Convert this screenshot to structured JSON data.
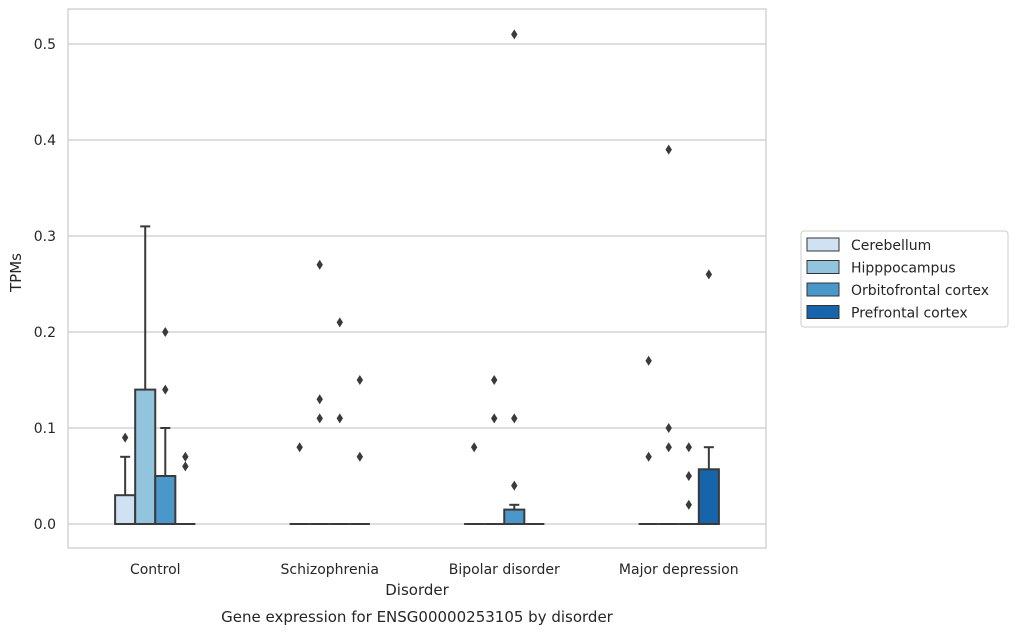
{
  "chart_data": {
    "type": "box",
    "title": "",
    "caption": "Gene expression for ENSG00000253105 by disorder",
    "xlabel": "Disorder",
    "ylabel": "TPMs",
    "ylim": [
      -0.025,
      0.54
    ],
    "yticks": [
      "0.0",
      "0.1",
      "0.2",
      "0.3",
      "0.4",
      "0.5"
    ],
    "grid": true,
    "legend_position": "right",
    "categories": [
      "Control",
      "Schizophrenia",
      "Bipolar disorder",
      "Major depression"
    ],
    "series": [
      {
        "name": "Cerebellum",
        "color": "#cfe1f2",
        "boxes": [
          {
            "q1": 0,
            "median": 0,
            "q3": 0.03,
            "whisker_low": 0,
            "whisker_high": 0.07,
            "outliers": [
              0.09
            ]
          },
          {
            "q1": 0,
            "median": 0,
            "q3": 0,
            "whisker_low": 0,
            "whisker_high": 0,
            "outliers": [
              0.08
            ]
          },
          {
            "q1": 0,
            "median": 0,
            "q3": 0,
            "whisker_low": 0,
            "whisker_high": 0,
            "outliers": [
              0.08
            ]
          },
          {
            "q1": 0,
            "median": 0,
            "q3": 0,
            "whisker_low": 0,
            "whisker_high": 0,
            "outliers": [
              0.17,
              0.07
            ]
          }
        ]
      },
      {
        "name": "Hipppocampus",
        "color": "#93c4de",
        "boxes": [
          {
            "q1": 0,
            "median": 0,
            "q3": 0.14,
            "whisker_low": 0,
            "whisker_high": 0.31,
            "outliers": []
          },
          {
            "q1": 0,
            "median": 0,
            "q3": 0,
            "whisker_low": 0,
            "whisker_high": 0,
            "outliers": [
              0.27,
              0.13,
              0.11
            ]
          },
          {
            "q1": 0,
            "median": 0,
            "q3": 0,
            "whisker_low": 0,
            "whisker_high": 0,
            "outliers": [
              0.15,
              0.11
            ]
          },
          {
            "q1": 0,
            "median": 0,
            "q3": 0,
            "whisker_low": 0,
            "whisker_high": 0,
            "outliers": [
              0.39,
              0.1,
              0.08
            ]
          }
        ]
      },
      {
        "name": "Orbitofrontal cortex",
        "color": "#4a98c9",
        "boxes": [
          {
            "q1": 0,
            "median": 0,
            "q3": 0.05,
            "whisker_low": 0,
            "whisker_high": 0.1,
            "outliers": [
              0.2,
              0.14
            ]
          },
          {
            "q1": 0,
            "median": 0,
            "q3": 0,
            "whisker_low": 0,
            "whisker_high": 0,
            "outliers": [
              0.21,
              0.11
            ]
          },
          {
            "q1": 0,
            "median": 0,
            "q3": 0.015,
            "whisker_low": 0,
            "whisker_high": 0.02,
            "outliers": [
              0.51,
              0.11,
              0.04
            ]
          },
          {
            "q1": 0,
            "median": 0,
            "q3": 0,
            "whisker_low": 0,
            "whisker_high": 0,
            "outliers": [
              0.08,
              0.05,
              0.02
            ]
          }
        ]
      },
      {
        "name": "Prefrontal cortex",
        "color": "#1764ab",
        "boxes": [
          {
            "q1": 0,
            "median": 0,
            "q3": 0,
            "whisker_low": 0,
            "whisker_high": 0,
            "outliers": [
              0.07,
              0.06
            ]
          },
          {
            "q1": 0,
            "median": 0,
            "q3": 0,
            "whisker_low": 0,
            "whisker_high": 0,
            "outliers": [
              0.15,
              0.07
            ]
          },
          {
            "q1": 0,
            "median": 0,
            "q3": 0,
            "whisker_low": 0,
            "whisker_high": 0,
            "outliers": []
          },
          {
            "q1": 0,
            "median": 0,
            "q3": 0.057,
            "whisker_low": 0,
            "whisker_high": 0.08,
            "outliers": [
              0.26
            ]
          }
        ]
      }
    ]
  }
}
